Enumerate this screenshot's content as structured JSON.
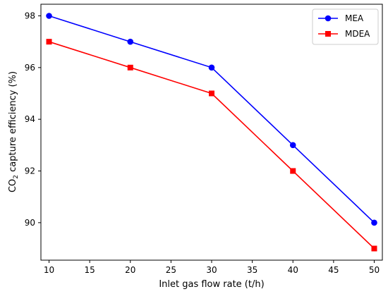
{
  "chart_data": {
    "type": "line",
    "xlabel": "Inlet gas flow rate (t/h)",
    "ylabel_main": "CO",
    "ylabel_sub": "2",
    "ylabel_rest": " capture efficiency (%)",
    "x": [
      10,
      20,
      30,
      40,
      50
    ],
    "xlim": [
      9,
      51
    ],
    "ylim": [
      88.55,
      98.45
    ],
    "xticks": [
      10,
      15,
      20,
      25,
      30,
      35,
      40,
      45,
      50
    ],
    "yticks": [
      90,
      92,
      94,
      96,
      98
    ],
    "grid": false,
    "legend_position": "top-right",
    "series": [
      {
        "name": "MEA",
        "values": [
          98,
          97,
          96,
          93,
          90
        ],
        "color": "#0000ff",
        "marker": "circle"
      },
      {
        "name": "MDEA",
        "values": [
          97,
          96,
          95,
          92,
          89
        ],
        "color": "#ff0000",
        "marker": "square"
      }
    ]
  }
}
